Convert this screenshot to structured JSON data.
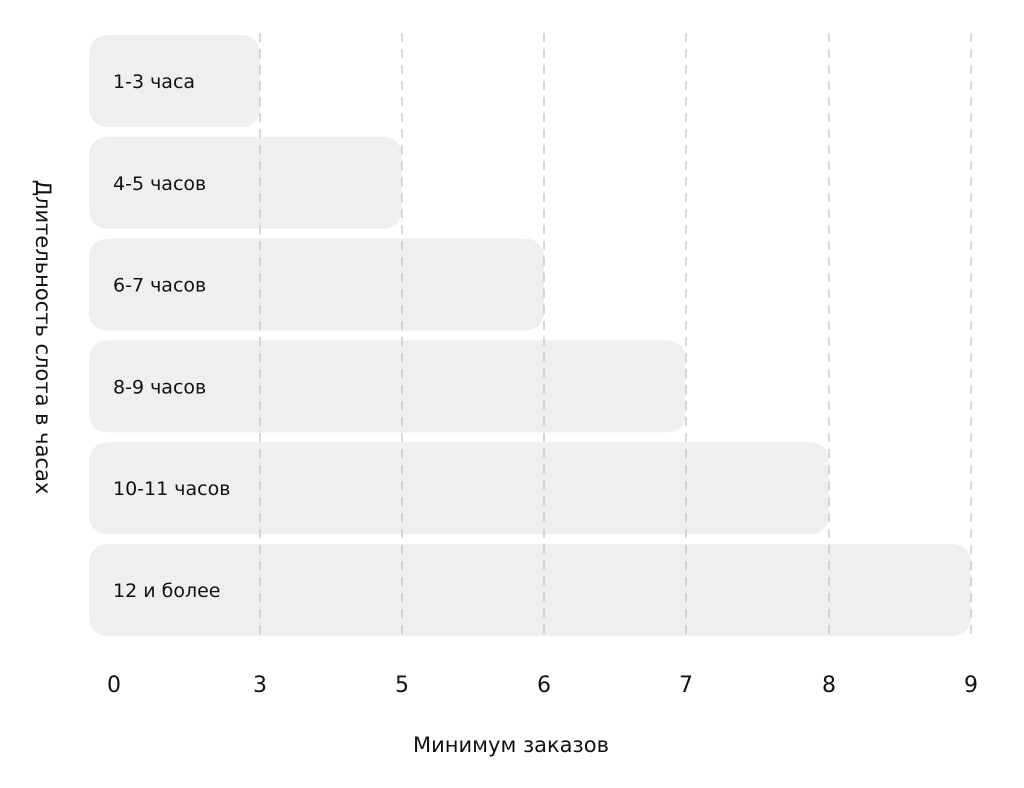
{
  "chart_data": {
    "type": "bar",
    "orientation": "horizontal",
    "categories": [
      "1-3 часа",
      "4-5 часов",
      "6-7 часов",
      "8-9 часов",
      "10-11 часов",
      "12 и более"
    ],
    "values": [
      3,
      5,
      6,
      7,
      8,
      9
    ],
    "xticks": [
      0,
      3,
      5,
      6,
      7,
      8,
      9
    ],
    "xlabel": "Минимум заказов",
    "ylabel": "Длительность слота в часах",
    "grid": "vertical dashed",
    "legend": "none",
    "colors": {
      "bar": "#f0eff0",
      "grid": "#c4c4c4",
      "text": "#111111"
    }
  }
}
